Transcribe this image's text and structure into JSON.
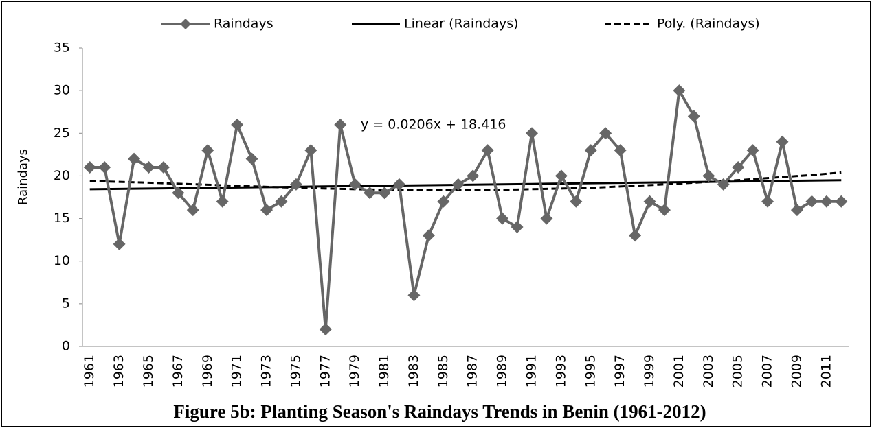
{
  "chart_data": {
    "type": "line",
    "title": "Figure 5b: Planting Season's Raindays Trends in Benin (1961-2012)",
    "y_label": "Raindays",
    "annotation": "y = 0.0206x + 18.416",
    "categories": [
      "1961",
      null,
      "1963",
      null,
      "1965",
      null,
      "1967",
      null,
      "1969",
      null,
      "1971",
      null,
      "1973",
      null,
      "1975",
      null,
      "1977",
      null,
      "1979",
      null,
      "1981",
      null,
      "1983",
      null,
      "1985",
      null,
      "1987",
      null,
      "1989",
      null,
      "1991",
      null,
      "1993",
      null,
      "1995",
      null,
      "1997",
      null,
      "1999",
      null,
      "2001",
      null,
      "2003",
      null,
      "2005",
      null,
      "2007",
      null,
      "2009",
      null,
      "2011",
      null
    ],
    "series": [
      {
        "name": "Raindays",
        "color": "#666666",
        "line_style": "solid",
        "marker": "diamond",
        "values": [
          21,
          21,
          12,
          22,
          21,
          21,
          18,
          16,
          23,
          17,
          26,
          22,
          16,
          17,
          19,
          23,
          2,
          26,
          19,
          18,
          18,
          19,
          6,
          13,
          17,
          19,
          20,
          23,
          15,
          14,
          25,
          15,
          20,
          17,
          23,
          25,
          23,
          13,
          17,
          16,
          30,
          27,
          20,
          19,
          21,
          23,
          17,
          24,
          16,
          17,
          17,
          17
        ]
      },
      {
        "name": "Linear (Raindays)",
        "color": "#000000",
        "line_style": "solid",
        "marker": "none",
        "values": [
          18.44,
          18.46,
          18.48,
          18.5,
          18.52,
          18.54,
          18.56,
          18.58,
          18.6,
          18.62,
          18.64,
          18.66,
          18.68,
          18.7,
          18.72,
          18.75,
          18.77,
          18.79,
          18.81,
          18.83,
          18.85,
          18.87,
          18.89,
          18.91,
          18.93,
          18.95,
          18.97,
          18.99,
          19.01,
          19.03,
          19.05,
          19.08,
          19.1,
          19.12,
          19.14,
          19.16,
          19.18,
          19.2,
          19.22,
          19.24,
          19.26,
          19.28,
          19.3,
          19.32,
          19.34,
          19.36,
          19.38,
          19.4,
          19.43,
          19.45,
          19.47,
          19.49
        ]
      },
      {
        "name": "Poly. (Raindays)",
        "color": "#000000",
        "line_style": "dashed",
        "marker": "none",
        "values": [
          19.4,
          19.35,
          19.3,
          19.25,
          19.2,
          19.14,
          19.08,
          19.02,
          18.96,
          18.9,
          18.84,
          18.78,
          18.72,
          18.66,
          18.6,
          18.56,
          18.52,
          18.48,
          18.44,
          18.4,
          18.38,
          18.36,
          18.34,
          18.32,
          18.3,
          18.32,
          18.34,
          18.36,
          18.38,
          18.4,
          18.44,
          18.48,
          18.52,
          18.56,
          18.6,
          18.68,
          18.76,
          18.84,
          18.92,
          19.0,
          19.1,
          19.2,
          19.3,
          19.4,
          19.5,
          19.62,
          19.74,
          19.86,
          19.98,
          20.1,
          20.25,
          20.4
        ]
      }
    ],
    "ylim": [
      0,
      35
    ],
    "yticks": [
      0,
      5,
      10,
      15,
      20,
      25,
      30,
      35
    ],
    "grid": false,
    "legend": "top"
  }
}
